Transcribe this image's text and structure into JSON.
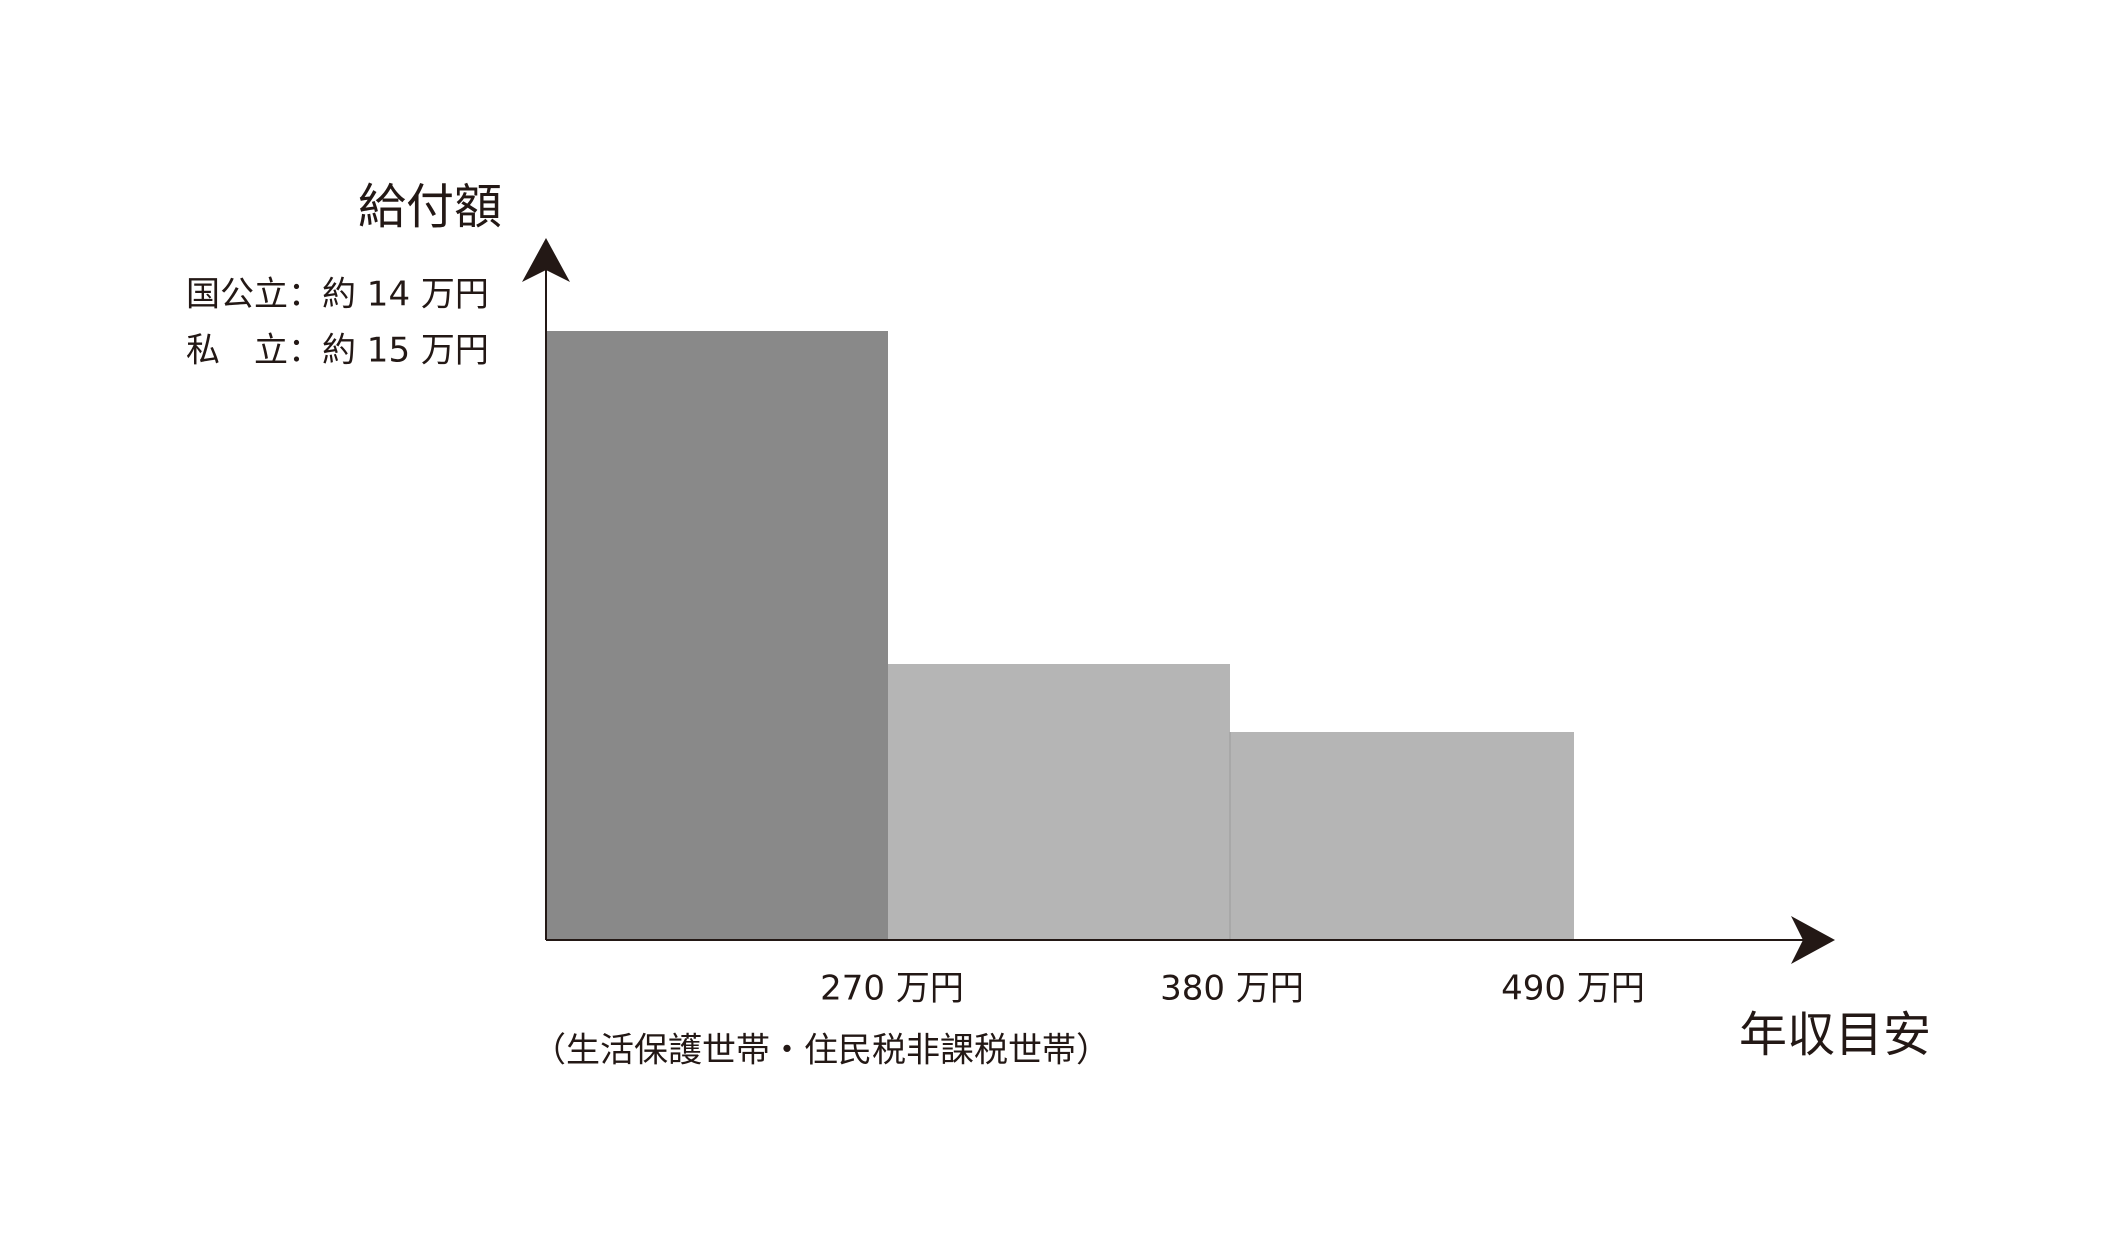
{
  "y_axis_label": "給付額",
  "notes": [
    "国公立：約 14 万円",
    "私　立：約 15 万円"
  ],
  "x_tick_labels": [
    "270 万円",
    "380 万円",
    "490 万円"
  ],
  "x_note": "（生活保護世帯・住民税非課税世帯）",
  "x_axis_label": "年収目安"
}
